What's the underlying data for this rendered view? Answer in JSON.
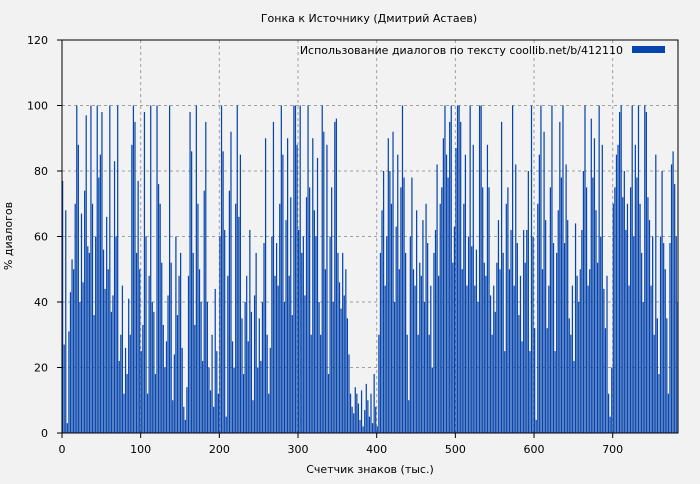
{
  "chart_data": {
    "type": "bar",
    "title": "Гонка к Источнику (Дмитрий Астаев)",
    "xlabel": "Счетчик знаков (тыс.)",
    "ylabel": "% диалогов",
    "legend": {
      "label": "Использование диалогов по тексту  coollib.net/b/412110",
      "placement": "top-right"
    },
    "xlim": [
      0,
      783
    ],
    "ylim": [
      0,
      120
    ],
    "xticks": [
      0,
      100,
      200,
      300,
      400,
      500,
      600,
      700
    ],
    "yticks": [
      0,
      20,
      40,
      60,
      80,
      100,
      120
    ],
    "grid": true,
    "bar_color": "#0645ad",
    "x_start": 1,
    "x_step": 2,
    "values": [
      77,
      27,
      68,
      3,
      31,
      43,
      53,
      50,
      70,
      100,
      88,
      40,
      67,
      46,
      74,
      97,
      57,
      55,
      100,
      70,
      36,
      60,
      100,
      78,
      85,
      98,
      56,
      44,
      66,
      50,
      100,
      37,
      42,
      83,
      60,
      100,
      22,
      30,
      45,
      12,
      26,
      18,
      41,
      30,
      88,
      100,
      95,
      55,
      77,
      50,
      25,
      33,
      98,
      60,
      12,
      48,
      100,
      40,
      37,
      18,
      100,
      76,
      70,
      52,
      33,
      20,
      28,
      42,
      100,
      52,
      10,
      24,
      60,
      36,
      48,
      55,
      26,
      8,
      4,
      14,
      48,
      98,
      86,
      55,
      33,
      100,
      70,
      50,
      40,
      22,
      74,
      95,
      40,
      20,
      13,
      30,
      8,
      44,
      25,
      12,
      60,
      100,
      86,
      62,
      5,
      48,
      74,
      92,
      28,
      20,
      70,
      100,
      66,
      85,
      35,
      18,
      40,
      48,
      28,
      62,
      37,
      10,
      42,
      55,
      20,
      35,
      22,
      40,
      58,
      90,
      30,
      12,
      26,
      60,
      95,
      48,
      58,
      45,
      70,
      100,
      85,
      40,
      65,
      90,
      48,
      72,
      36,
      100,
      100,
      88,
      62,
      100,
      55,
      60,
      42,
      72,
      100,
      75,
      30,
      90,
      68,
      60,
      84,
      40,
      30,
      100,
      92,
      50,
      88,
      18,
      60,
      75,
      40,
      95,
      96,
      55,
      46,
      38,
      55,
      42,
      50,
      35,
      24,
      12,
      8,
      6,
      14,
      12,
      9,
      4,
      13,
      2,
      7,
      15,
      10,
      5,
      12,
      3,
      18,
      8,
      2,
      30,
      55,
      68,
      80,
      45,
      60,
      90,
      80,
      70,
      92,
      40,
      63,
      85,
      50,
      75,
      100,
      78,
      55,
      30,
      10,
      60,
      78,
      50,
      45,
      68,
      30,
      52,
      48,
      65,
      40,
      70,
      58,
      30,
      45,
      20,
      55,
      62,
      82,
      48,
      70,
      75,
      90,
      100,
      85,
      78,
      95,
      100,
      52,
      63,
      87,
      100,
      100,
      95,
      50,
      70,
      85,
      45,
      60,
      100,
      57,
      88,
      45,
      56,
      40,
      100,
      100,
      75,
      52,
      48,
      88,
      75,
      42,
      30,
      45,
      37,
      52,
      65,
      50,
      95,
      55,
      25,
      70,
      75,
      50,
      62,
      100,
      45,
      82,
      58,
      36,
      48,
      28,
      62,
      52,
      62,
      80,
      25,
      100,
      60,
      32,
      4,
      70,
      85,
      100,
      50,
      92,
      65,
      32,
      45,
      75,
      100,
      58,
      25,
      55,
      68,
      95,
      78,
      100,
      58,
      82,
      65,
      35,
      30,
      45,
      22,
      64,
      48,
      40,
      50,
      62,
      80,
      100,
      75,
      45,
      50,
      96,
      78,
      90,
      68,
      52,
      100,
      60,
      88,
      44,
      32,
      48,
      12,
      5,
      20,
      70,
      75,
      85,
      88,
      98,
      100,
      72,
      80,
      62,
      70,
      45,
      75,
      100,
      60,
      88,
      78,
      100,
      70,
      55,
      40,
      100,
      98,
      72,
      65,
      45,
      60,
      30,
      85,
      35,
      18,
      60,
      80,
      58,
      50,
      35,
      12,
      58,
      82,
      86,
      76,
      60,
      40
    ]
  }
}
